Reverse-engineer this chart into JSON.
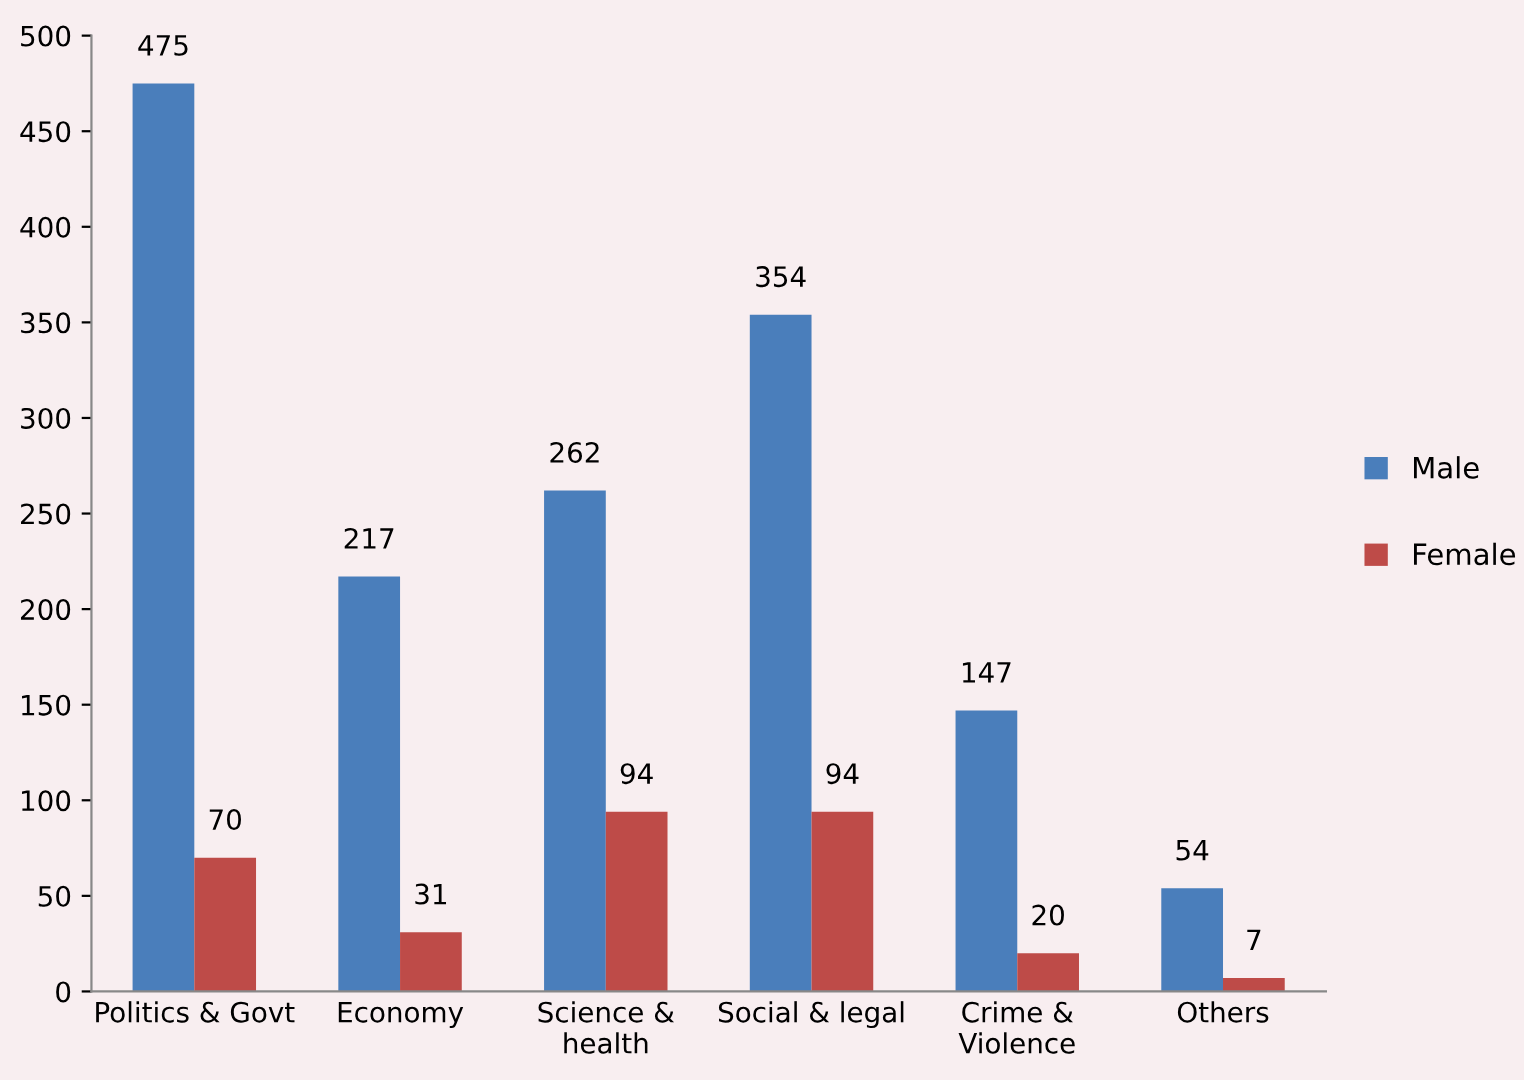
{
  "chart_data": {
    "type": "bar",
    "categories": [
      "Politics & Govt",
      "Economy",
      "Science &\nhealth",
      "Social & legal",
      "Crime &\nViolence",
      "Others"
    ],
    "series": [
      {
        "name": "Male",
        "color": "#4a7ebb",
        "values": [
          475,
          217,
          262,
          354,
          147,
          54
        ]
      },
      {
        "name": "Female",
        "color": "#be4b48",
        "values": [
          70,
          31,
          94,
          94,
          20,
          7
        ]
      }
    ],
    "ylim": [
      0,
      500
    ],
    "yticks": [
      0,
      50,
      100,
      150,
      200,
      250,
      300,
      350,
      400,
      450,
      500
    ],
    "data_labels": true,
    "grid": false,
    "legend": "right"
  }
}
